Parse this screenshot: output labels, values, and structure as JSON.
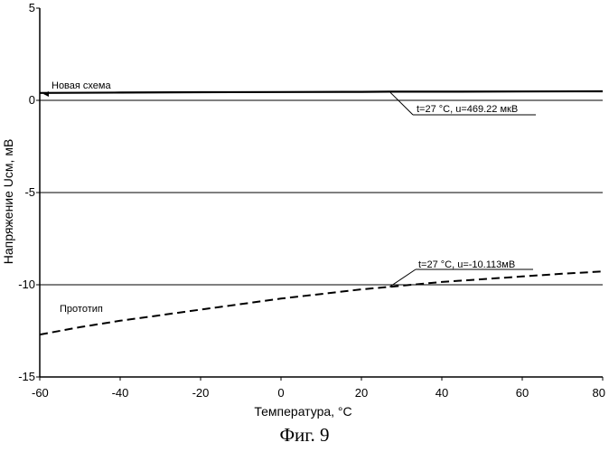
{
  "chart_data": {
    "type": "line",
    "xlabel": "Температура, °C",
    "ylabel": "Напряжение Uсм, мВ",
    "xlim": [
      -60,
      80
    ],
    "ylim": [
      -15,
      5
    ],
    "x_ticks": [
      -60,
      -40,
      -20,
      0,
      20,
      40,
      60,
      80
    ],
    "y_ticks": [
      5,
      0,
      -5,
      -10,
      -15
    ],
    "x_tick_labels": [
      "-60",
      "-40",
      "-20",
      "0",
      "20",
      "40",
      "60",
      "80"
    ],
    "y_tick_labels": [
      "5",
      "0",
      "-5",
      "-10",
      "-15"
    ],
    "reference_lines": [
      0,
      -5,
      -10
    ],
    "series": [
      {
        "name": "Новая схема",
        "style": "solid",
        "color": "#000000",
        "x": [
          -60,
          -40,
          -20,
          0,
          20,
          27,
          40,
          60,
          80
        ],
        "y": [
          0.4,
          0.42,
          0.44,
          0.45,
          0.46,
          0.47,
          0.47,
          0.48,
          0.49
        ]
      },
      {
        "name": "Прототип",
        "style": "dashed",
        "color": "#000000",
        "x": [
          -60,
          -50,
          -40,
          -30,
          -20,
          -10,
          0,
          10,
          20,
          27,
          40,
          50,
          60,
          70,
          80
        ],
        "y": [
          -12.7,
          -12.3,
          -11.95,
          -11.65,
          -11.35,
          -11.05,
          -10.75,
          -10.5,
          -10.25,
          -10.113,
          -9.85,
          -9.7,
          -9.55,
          -9.4,
          -9.28
        ]
      }
    ],
    "annotations": [
      {
        "x": 27,
        "y": 0.469,
        "text": "t=27 °C, u=469.22 мкВ"
      },
      {
        "x": 27,
        "y": -10.113,
        "text": "t=27 °C, u=-10.113мВ"
      }
    ]
  },
  "caption": "Фиг. 9"
}
